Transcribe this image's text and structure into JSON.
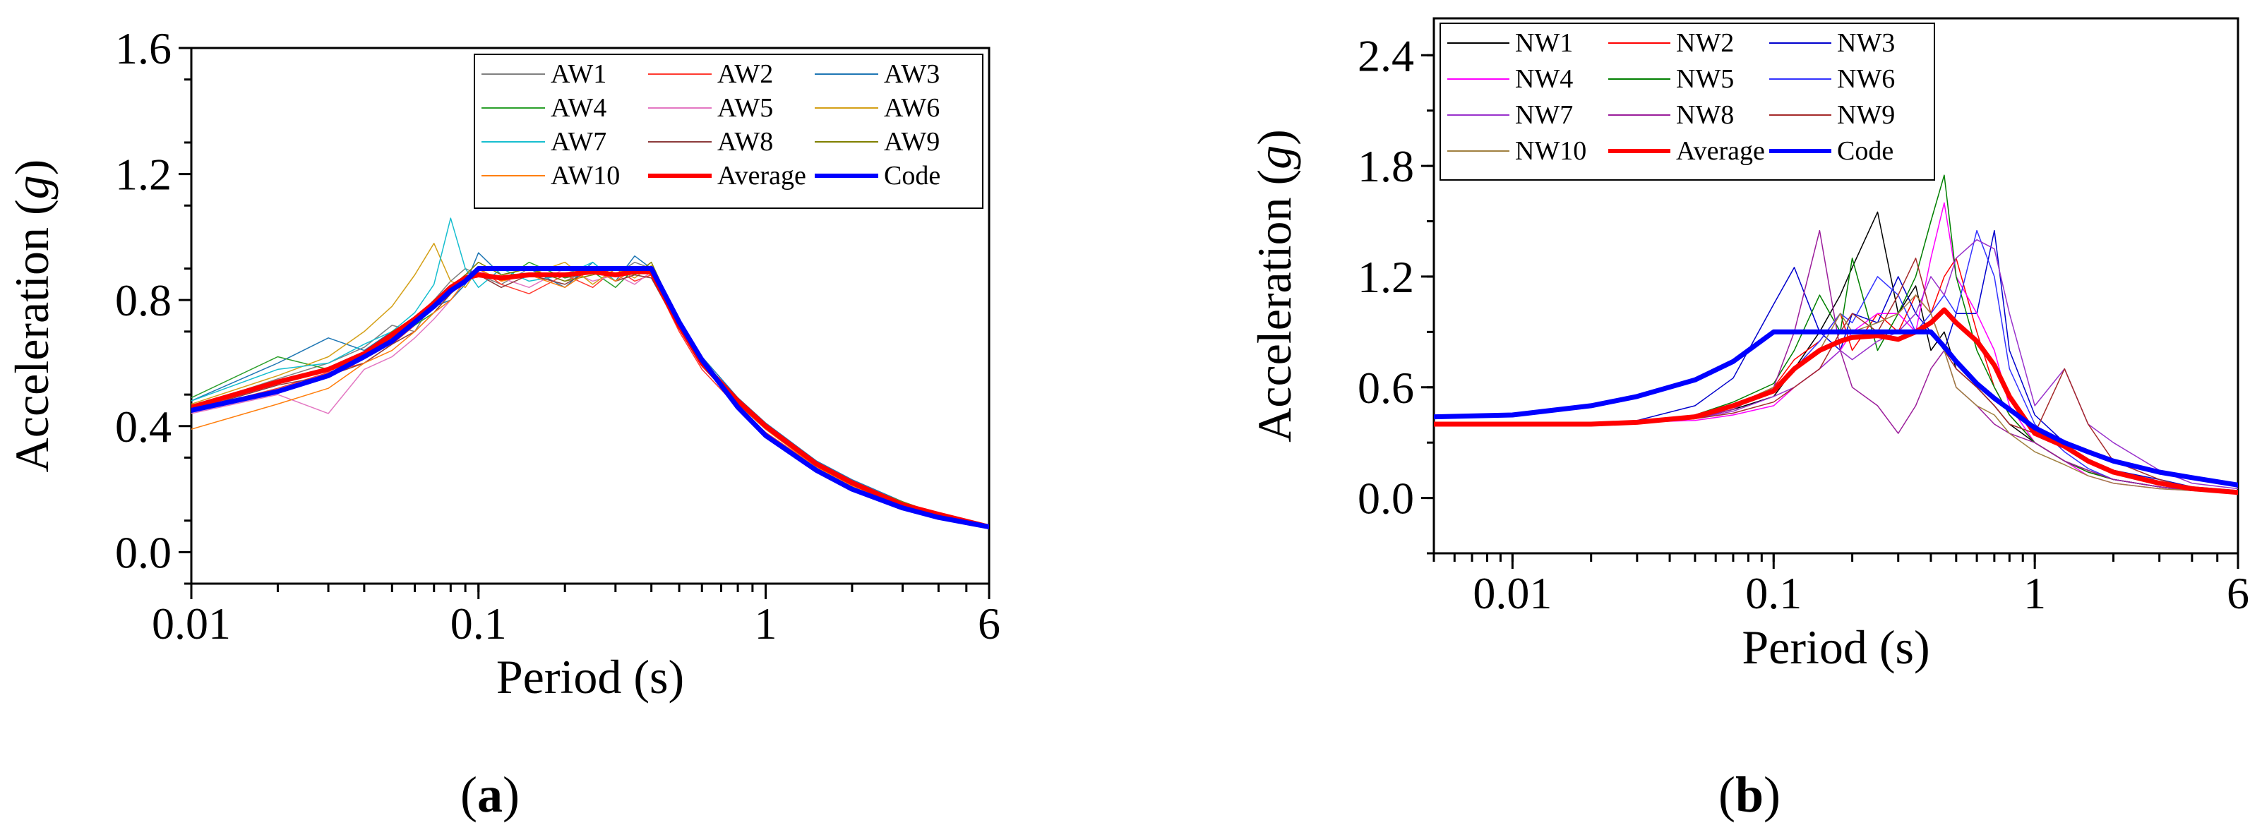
{
  "chart_data": [
    {
      "type": "line",
      "panel_label": "a",
      "xlabel": "Period (s)",
      "ylabel": "Acceleration (g)",
      "ylabel_text": "Acceleration (",
      "ylabel_unit": "g",
      "ylabel_close": ")",
      "xscale": "log",
      "xlim": [
        0.01,
        6
      ],
      "ylim": [
        -0.1,
        1.6
      ],
      "xticks": [
        0.01,
        0.1,
        1,
        6
      ],
      "xtick_labels": [
        "0.01",
        "0.1",
        "1",
        "6"
      ],
      "yticks": [
        0.0,
        0.4,
        0.8,
        1.2,
        1.6
      ],
      "ytick_labels": [
        "0.0",
        "0.4",
        "0.8",
        "1.2",
        "1.6"
      ],
      "legend_position": "top-right",
      "x": [
        0.01,
        0.02,
        0.03,
        0.04,
        0.05,
        0.06,
        0.07,
        0.08,
        0.09,
        0.1,
        0.12,
        0.15,
        0.2,
        0.25,
        0.3,
        0.35,
        0.4,
        0.5,
        0.6,
        0.8,
        1.0,
        1.5,
        2.0,
        3.0,
        4.0,
        6.0
      ],
      "series": [
        {
          "name": "AW1",
          "color": "#808080",
          "width": 1.5,
          "values": [
            0.46,
            0.55,
            0.6,
            0.65,
            0.72,
            0.7,
            0.8,
            0.86,
            0.9,
            0.88,
            0.85,
            0.9,
            0.86,
            0.9,
            0.88,
            0.92,
            0.9,
            0.72,
            0.6,
            0.48,
            0.4,
            0.28,
            0.22,
            0.15,
            0.12,
            0.08
          ]
        },
        {
          "name": "AW2",
          "color": "#ff3b30",
          "width": 1.5,
          "values": [
            0.45,
            0.52,
            0.57,
            0.6,
            0.66,
            0.72,
            0.78,
            0.84,
            0.88,
            0.9,
            0.85,
            0.82,
            0.88,
            0.84,
            0.9,
            0.86,
            0.88,
            0.7,
            0.58,
            0.46,
            0.38,
            0.27,
            0.21,
            0.15,
            0.11,
            0.08
          ]
        },
        {
          "name": "AW3",
          "color": "#1f77b4",
          "width": 1.5,
          "values": [
            0.48,
            0.6,
            0.68,
            0.64,
            0.7,
            0.74,
            0.78,
            0.8,
            0.85,
            0.95,
            0.88,
            0.9,
            0.84,
            0.92,
            0.86,
            0.94,
            0.9,
            0.74,
            0.62,
            0.49,
            0.41,
            0.29,
            0.23,
            0.16,
            0.12,
            0.08
          ]
        },
        {
          "name": "AW4",
          "color": "#2ca02c",
          "width": 1.5,
          "values": [
            0.49,
            0.62,
            0.58,
            0.62,
            0.68,
            0.72,
            0.76,
            0.82,
            0.87,
            0.9,
            0.86,
            0.92,
            0.87,
            0.89,
            0.84,
            0.9,
            0.88,
            0.72,
            0.6,
            0.47,
            0.39,
            0.28,
            0.22,
            0.15,
            0.12,
            0.08
          ]
        },
        {
          "name": "AW5",
          "color": "#e377c2",
          "width": 1.5,
          "values": [
            0.44,
            0.5,
            0.44,
            0.58,
            0.62,
            0.68,
            0.74,
            0.8,
            0.86,
            0.89,
            0.87,
            0.84,
            0.9,
            0.86,
            0.88,
            0.85,
            0.89,
            0.71,
            0.59,
            0.47,
            0.39,
            0.27,
            0.21,
            0.15,
            0.11,
            0.08
          ]
        },
        {
          "name": "AW6",
          "color": "#d4a017",
          "width": 1.5,
          "values": [
            0.47,
            0.56,
            0.62,
            0.7,
            0.78,
            0.88,
            0.98,
            0.86,
            0.84,
            0.9,
            0.86,
            0.88,
            0.92,
            0.85,
            0.9,
            0.87,
            0.91,
            0.73,
            0.61,
            0.48,
            0.4,
            0.28,
            0.22,
            0.15,
            0.12,
            0.08
          ]
        },
        {
          "name": "AW7",
          "color": "#17becf",
          "width": 1.5,
          "values": [
            0.48,
            0.58,
            0.6,
            0.66,
            0.7,
            0.76,
            0.85,
            1.06,
            0.9,
            0.84,
            0.9,
            0.86,
            0.88,
            0.92,
            0.86,
            0.9,
            0.88,
            0.72,
            0.6,
            0.48,
            0.4,
            0.28,
            0.22,
            0.15,
            0.12,
            0.08
          ]
        },
        {
          "name": "AW8",
          "color": "#8c3b3b",
          "width": 1.5,
          "values": [
            0.45,
            0.53,
            0.56,
            0.6,
            0.66,
            0.7,
            0.76,
            0.82,
            0.86,
            0.88,
            0.84,
            0.88,
            0.85,
            0.9,
            0.86,
            0.88,
            0.87,
            0.71,
            0.59,
            0.47,
            0.39,
            0.27,
            0.21,
            0.15,
            0.11,
            0.08
          ]
        },
        {
          "name": "AW9",
          "color": "#808000",
          "width": 1.5,
          "values": [
            0.46,
            0.54,
            0.58,
            0.62,
            0.7,
            0.74,
            0.8,
            0.84,
            0.88,
            0.92,
            0.88,
            0.9,
            0.86,
            0.88,
            0.9,
            0.88,
            0.92,
            0.73,
            0.61,
            0.48,
            0.4,
            0.28,
            0.22,
            0.16,
            0.12,
            0.08
          ]
        },
        {
          "name": "AW10",
          "color": "#ff7f0e",
          "width": 1.5,
          "values": [
            0.39,
            0.47,
            0.52,
            0.6,
            0.64,
            0.7,
            0.76,
            0.8,
            0.86,
            0.9,
            0.86,
            0.88,
            0.84,
            0.9,
            0.86,
            0.9,
            0.88,
            0.72,
            0.6,
            0.47,
            0.39,
            0.27,
            0.21,
            0.15,
            0.11,
            0.08
          ]
        },
        {
          "name": "Average",
          "color": "#ff0000",
          "width": 7,
          "values": [
            0.46,
            0.54,
            0.58,
            0.63,
            0.69,
            0.74,
            0.79,
            0.84,
            0.87,
            0.88,
            0.87,
            0.88,
            0.88,
            0.89,
            0.88,
            0.89,
            0.89,
            0.72,
            0.6,
            0.48,
            0.4,
            0.28,
            0.22,
            0.15,
            0.12,
            0.08
          ]
        },
        {
          "name": "Code",
          "color": "#0000ff",
          "width": 7,
          "values": [
            0.45,
            0.51,
            0.56,
            0.62,
            0.67,
            0.73,
            0.78,
            0.83,
            0.86,
            0.9,
            0.9,
            0.9,
            0.9,
            0.9,
            0.9,
            0.9,
            0.9,
            0.73,
            0.61,
            0.46,
            0.37,
            0.26,
            0.2,
            0.14,
            0.11,
            0.08
          ]
        }
      ]
    },
    {
      "type": "line",
      "panel_label": "b",
      "xlabel": "Period (s)",
      "ylabel": "Acceleration (g)",
      "ylabel_text": "Acceleration (",
      "ylabel_unit": "g",
      "ylabel_close": ")",
      "xscale": "log",
      "xlim": [
        0.005,
        6
      ],
      "ylim": [
        -0.3,
        2.6
      ],
      "xticks": [
        0.01,
        0.1,
        1,
        6
      ],
      "xtick_labels": [
        "0.01",
        "0.1",
        "1",
        "6"
      ],
      "yticks": [
        0.0,
        0.6,
        1.2,
        1.8,
        2.4
      ],
      "ytick_labels": [
        "0.0",
        "0.6",
        "1.2",
        "1.8",
        "2.4"
      ],
      "legend_position": "top-left",
      "x": [
        0.005,
        0.01,
        0.02,
        0.03,
        0.05,
        0.07,
        0.1,
        0.12,
        0.15,
        0.18,
        0.2,
        0.25,
        0.3,
        0.35,
        0.4,
        0.45,
        0.5,
        0.6,
        0.7,
        0.8,
        1.0,
        1.3,
        1.6,
        2.0,
        3.0,
        4.0,
        6.0
      ],
      "series": [
        {
          "name": "NW1",
          "color": "#000000",
          "width": 1.5,
          "values": [
            0.4,
            0.4,
            0.4,
            0.41,
            0.43,
            0.48,
            0.55,
            0.7,
            0.9,
            1.1,
            1.25,
            1.55,
            1.0,
            1.15,
            0.8,
            0.9,
            0.7,
            0.6,
            0.5,
            0.4,
            0.3,
            0.2,
            0.15,
            0.1,
            0.06,
            0.04,
            0.03
          ]
        },
        {
          "name": "NW2",
          "color": "#ff0000",
          "width": 1.5,
          "values": [
            0.4,
            0.4,
            0.4,
            0.41,
            0.44,
            0.5,
            0.6,
            0.75,
            0.85,
            1.0,
            0.8,
            1.0,
            0.9,
            1.1,
            1.0,
            1.2,
            1.3,
            0.9,
            0.6,
            0.45,
            0.3,
            0.2,
            0.14,
            0.1,
            0.06,
            0.04,
            0.03
          ]
        },
        {
          "name": "NW3",
          "color": "#0000cd",
          "width": 1.5,
          "values": [
            0.4,
            0.4,
            0.4,
            0.42,
            0.5,
            0.65,
            1.05,
            1.25,
            0.9,
            0.8,
            1.0,
            0.95,
            1.2,
            1.0,
            0.9,
            0.8,
            1.0,
            1.0,
            1.45,
            0.8,
            0.45,
            0.3,
            0.2,
            0.15,
            0.1,
            0.06,
            0.04
          ]
        },
        {
          "name": "NW4",
          "color": "#ff00ff",
          "width": 1.5,
          "values": [
            0.4,
            0.4,
            0.4,
            0.41,
            0.42,
            0.45,
            0.5,
            0.6,
            0.7,
            0.8,
            0.9,
            1.0,
            1.0,
            0.9,
            1.3,
            1.6,
            1.2,
            1.0,
            0.8,
            0.5,
            0.3,
            0.2,
            0.12,
            0.08,
            0.05,
            0.04,
            0.03
          ]
        },
        {
          "name": "NW5",
          "color": "#008000",
          "width": 1.5,
          "values": [
            0.4,
            0.4,
            0.4,
            0.41,
            0.45,
            0.52,
            0.62,
            0.8,
            1.1,
            0.9,
            1.3,
            0.8,
            1.0,
            1.2,
            1.5,
            1.75,
            1.2,
            0.8,
            0.6,
            0.45,
            0.3,
            0.2,
            0.14,
            0.1,
            0.06,
            0.04,
            0.03
          ]
        },
        {
          "name": "NW6",
          "color": "#3333ff",
          "width": 1.5,
          "values": [
            0.4,
            0.4,
            0.4,
            0.41,
            0.44,
            0.5,
            0.58,
            0.7,
            0.85,
            1.0,
            0.95,
            1.2,
            1.1,
            0.9,
            1.0,
            1.1,
            1.0,
            1.45,
            1.2,
            0.7,
            0.4,
            0.25,
            0.16,
            0.1,
            0.06,
            0.04,
            0.03
          ]
        },
        {
          "name": "NW7",
          "color": "#9932cc",
          "width": 1.5,
          "values": [
            0.4,
            0.4,
            0.4,
            0.41,
            0.43,
            0.47,
            0.55,
            0.6,
            0.7,
            0.8,
            0.75,
            0.85,
            0.9,
            1.0,
            1.2,
            1.1,
            1.3,
            1.4,
            1.35,
            1.0,
            0.5,
            0.7,
            0.4,
            0.3,
            0.15,
            0.08,
            0.05
          ]
        },
        {
          "name": "NW8",
          "color": "#9b1d9b",
          "width": 1.5,
          "values": [
            0.4,
            0.4,
            0.4,
            0.41,
            0.43,
            0.48,
            0.6,
            0.9,
            1.45,
            0.8,
            0.6,
            0.5,
            0.35,
            0.5,
            0.7,
            0.8,
            0.6,
            0.5,
            0.4,
            0.35,
            0.3,
            0.2,
            0.15,
            0.1,
            0.06,
            0.04,
            0.03
          ]
        },
        {
          "name": "NW9",
          "color": "#a52a2a",
          "width": 1.5,
          "values": [
            0.4,
            0.4,
            0.4,
            0.41,
            0.43,
            0.46,
            0.52,
            0.6,
            0.7,
            0.9,
            1.0,
            0.9,
            1.1,
            1.3,
            1.0,
            0.8,
            0.7,
            0.6,
            0.5,
            0.4,
            0.35,
            0.7,
            0.4,
            0.2,
            0.1,
            0.05,
            0.03
          ]
        },
        {
          "name": "NW10",
          "color": "#a08040",
          "width": 1.5,
          "values": [
            0.4,
            0.4,
            0.4,
            0.41,
            0.44,
            0.5,
            0.6,
            0.7,
            0.8,
            1.0,
            0.9,
            0.95,
            1.0,
            1.1,
            1.0,
            0.8,
            0.6,
            0.5,
            0.45,
            0.35,
            0.25,
            0.18,
            0.12,
            0.08,
            0.05,
            0.04,
            0.03
          ]
        },
        {
          "name": "Average",
          "color": "#ff0000",
          "width": 7,
          "values": [
            0.4,
            0.4,
            0.4,
            0.41,
            0.44,
            0.5,
            0.58,
            0.7,
            0.8,
            0.85,
            0.87,
            0.88,
            0.86,
            0.9,
            0.95,
            1.02,
            0.95,
            0.85,
            0.72,
            0.55,
            0.35,
            0.28,
            0.2,
            0.14,
            0.08,
            0.05,
            0.03
          ]
        },
        {
          "name": "Code",
          "color": "#0000ff",
          "width": 7,
          "values": [
            0.44,
            0.45,
            0.5,
            0.55,
            0.64,
            0.74,
            0.9,
            0.9,
            0.9,
            0.9,
            0.9,
            0.9,
            0.9,
            0.9,
            0.9,
            0.82,
            0.74,
            0.62,
            0.54,
            0.48,
            0.38,
            0.3,
            0.25,
            0.2,
            0.14,
            0.11,
            0.07
          ]
        }
      ]
    }
  ]
}
